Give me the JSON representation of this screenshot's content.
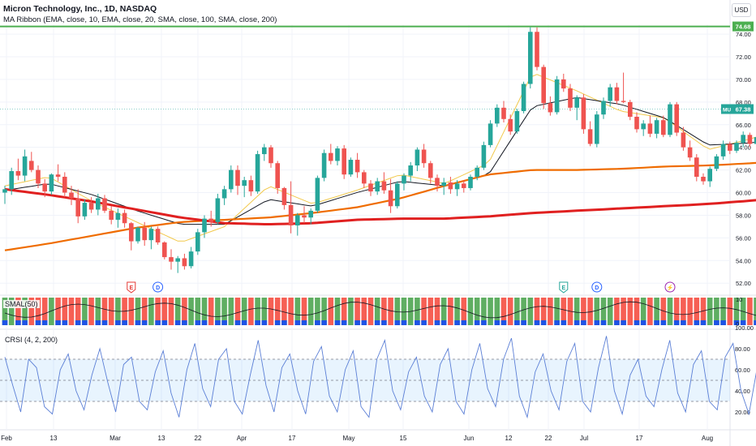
{
  "header": {
    "title": "Micron Technology, Inc., 1D, NASDAQ",
    "indicator": "MA Ribbon (EMA, close, 10, EMA, close, 20, SMA, close, 100, SMA, close, 200)",
    "currency_button": "USD"
  },
  "chart_data": {
    "type": "candlestick",
    "price_axis": {
      "ticks": [
        "74.00",
        "72.00",
        "70.00",
        "68.00",
        "66.00",
        "64.00",
        "62.00",
        "60.00",
        "58.00",
        "56.00",
        "54.00",
        "52.00"
      ],
      "ylim": [
        51,
        75.5
      ]
    },
    "x_axis": {
      "ticks": [
        "Feb",
        "13",
        "Mar",
        "13",
        "22",
        "Apr",
        "17",
        "May",
        "15",
        "Jun",
        "12",
        "22",
        "Jul",
        "17",
        "Aug"
      ]
    },
    "horizontal_level": {
      "value": 74.68,
      "label": "74.68",
      "color": "#4caf50"
    },
    "last_price": {
      "symbol": "MU",
      "value": 67.38,
      "label": "67.38",
      "color": "#26a69a"
    },
    "event_markers": [
      {
        "type": "earnings",
        "text": "E",
        "color": "#e53935",
        "day": 19
      },
      {
        "type": "dividend",
        "text": "D",
        "color": "#2962ff",
        "day": 23
      },
      {
        "type": "earnings",
        "text": "E",
        "color": "#26a69a",
        "day": 84
      },
      {
        "type": "dividend",
        "text": "D",
        "color": "#2962ff",
        "day": 89
      },
      {
        "type": "split",
        "text": "⚡",
        "color": "#9c27b0",
        "day": 100
      }
    ],
    "candles": [
      [
        60.0,
        60.6,
        59.0,
        60.3
      ],
      [
        60.3,
        62.2,
        59.8,
        61.9
      ],
      [
        61.9,
        63.0,
        61.1,
        61.5
      ],
      [
        61.5,
        63.8,
        61.0,
        63.2
      ],
      [
        62.8,
        63.6,
        61.8,
        62.0
      ],
      [
        62.0,
        62.4,
        60.4,
        60.8
      ],
      [
        60.8,
        61.2,
        59.6,
        60.1
      ],
      [
        60.1,
        61.7,
        59.8,
        61.6
      ],
      [
        61.6,
        62.5,
        61.0,
        61.4
      ],
      [
        61.4,
        61.8,
        59.6,
        60.0
      ],
      [
        60.0,
        60.6,
        58.9,
        59.5
      ],
      [
        59.5,
        60.3,
        57.3,
        57.9
      ],
      [
        57.9,
        59.4,
        57.6,
        59.1
      ],
      [
        59.1,
        59.6,
        58.2,
        58.5
      ],
      [
        58.5,
        59.9,
        58.0,
        59.5
      ],
      [
        59.5,
        59.8,
        58.2,
        58.4
      ],
      [
        58.4,
        58.8,
        57.2,
        57.6
      ],
      [
        57.6,
        58.6,
        56.9,
        58.2
      ],
      [
        58.2,
        58.5,
        56.9,
        57.3
      ],
      [
        57.3,
        57.4,
        54.9,
        55.7
      ],
      [
        55.7,
        57.0,
        55.5,
        56.9
      ],
      [
        56.9,
        57.4,
        55.3,
        55.8
      ],
      [
        55.8,
        57.0,
        55.0,
        56.8
      ],
      [
        56.8,
        57.0,
        55.4,
        55.6
      ],
      [
        55.6,
        55.7,
        54.1,
        54.3
      ],
      [
        54.3,
        55.0,
        53.2,
        53.9
      ],
      [
        53.9,
        54.4,
        52.9,
        54.2
      ],
      [
        54.2,
        54.6,
        53.2,
        53.5
      ],
      [
        53.5,
        55.2,
        53.3,
        54.8
      ],
      [
        54.8,
        56.8,
        54.5,
        56.5
      ],
      [
        56.5,
        58.0,
        56.0,
        57.7
      ],
      [
        57.7,
        58.4,
        57.0,
        57.4
      ],
      [
        57.4,
        59.9,
        57.2,
        59.5
      ],
      [
        59.5,
        60.6,
        58.9,
        60.3
      ],
      [
        60.3,
        62.4,
        60.0,
        62.0
      ],
      [
        62.0,
        62.4,
        59.8,
        60.6
      ],
      [
        60.6,
        61.4,
        59.6,
        61.1
      ],
      [
        61.1,
        61.5,
        59.7,
        60.1
      ],
      [
        60.1,
        63.7,
        59.9,
        63.4
      ],
      [
        63.4,
        64.3,
        62.8,
        64.0
      ],
      [
        64.0,
        64.2,
        62.2,
        62.6
      ],
      [
        62.6,
        62.8,
        59.9,
        60.4
      ],
      [
        60.4,
        60.5,
        58.5,
        58.9
      ],
      [
        58.9,
        61.0,
        56.4,
        57.1
      ],
      [
        57.1,
        58.2,
        56.2,
        58.0
      ],
      [
        58.0,
        58.8,
        57.3,
        57.8
      ],
      [
        57.8,
        58.6,
        57.2,
        58.4
      ],
      [
        58.4,
        61.5,
        58.2,
        61.3
      ],
      [
        61.3,
        63.8,
        61.0,
        63.5
      ],
      [
        63.5,
        64.3,
        62.5,
        62.8
      ],
      [
        62.8,
        64.1,
        62.4,
        63.9
      ],
      [
        63.9,
        64.2,
        61.2,
        61.6
      ],
      [
        61.6,
        63.1,
        61.4,
        62.9
      ],
      [
        62.9,
        63.5,
        61.3,
        61.8
      ],
      [
        61.8,
        62.0,
        60.4,
        60.8
      ],
      [
        60.8,
        61.1,
        59.7,
        60.1
      ],
      [
        60.1,
        61.3,
        59.8,
        61.0
      ],
      [
        61.0,
        61.8,
        59.9,
        60.2
      ],
      [
        60.2,
        61.2,
        58.2,
        58.8
      ],
      [
        58.8,
        61.0,
        58.6,
        60.8
      ],
      [
        60.8,
        61.7,
        60.2,
        61.5
      ],
      [
        61.5,
        62.7,
        61.0,
        62.4
      ],
      [
        62.4,
        64.0,
        61.9,
        63.8
      ],
      [
        63.8,
        64.3,
        62.2,
        62.6
      ],
      [
        62.6,
        62.8,
        60.8,
        61.3
      ],
      [
        61.3,
        61.6,
        60.1,
        60.6
      ],
      [
        60.6,
        61.3,
        59.8,
        60.9
      ],
      [
        60.9,
        61.4,
        59.9,
        60.3
      ],
      [
        60.3,
        61.1,
        59.7,
        60.8
      ],
      [
        60.8,
        61.1,
        60.0,
        60.4
      ],
      [
        60.4,
        61.6,
        60.2,
        61.4
      ],
      [
        61.4,
        62.4,
        61.1,
        62.2
      ],
      [
        62.2,
        64.5,
        62.0,
        64.2
      ],
      [
        64.2,
        66.4,
        64.0,
        66.1
      ],
      [
        66.1,
        67.8,
        65.8,
        67.5
      ],
      [
        67.5,
        68.1,
        66.2,
        66.5
      ],
      [
        66.5,
        66.9,
        65.1,
        65.4
      ],
      [
        65.4,
        67.4,
        65.2,
        67.2
      ],
      [
        67.2,
        69.8,
        67.0,
        69.6
      ],
      [
        69.6,
        74.6,
        69.2,
        74.2
      ],
      [
        74.2,
        74.6,
        70.8,
        71.1
      ],
      [
        71.1,
        71.3,
        67.4,
        67.9
      ],
      [
        67.9,
        68.5,
        66.8,
        67.1
      ],
      [
        67.1,
        70.3,
        66.9,
        70.0
      ],
      [
        70.0,
        70.5,
        68.9,
        69.2
      ],
      [
        69.2,
        69.6,
        67.2,
        67.5
      ],
      [
        67.5,
        68.6,
        66.4,
        68.4
      ],
      [
        68.4,
        68.7,
        65.2,
        65.6
      ],
      [
        65.6,
        66.3,
        64.1,
        64.3
      ],
      [
        64.3,
        67.2,
        64.0,
        66.9
      ],
      [
        66.9,
        68.4,
        66.5,
        68.1
      ],
      [
        68.1,
        69.6,
        67.6,
        69.3
      ],
      [
        69.3,
        69.7,
        67.8,
        68.1
      ],
      [
        68.1,
        70.6,
        67.9,
        68.0
      ],
      [
        68.0,
        68.2,
        66.4,
        66.7
      ],
      [
        66.7,
        67.1,
        65.3,
        65.6
      ],
      [
        65.6,
        66.4,
        65.0,
        66.1
      ],
      [
        66.1,
        66.8,
        64.9,
        65.2
      ],
      [
        65.2,
        66.6,
        64.8,
        66.4
      ],
      [
        66.4,
        66.8,
        64.9,
        65.1
      ],
      [
        65.1,
        68.0,
        64.9,
        67.8
      ],
      [
        67.8,
        68.0,
        65.0,
        65.3
      ],
      [
        65.3,
        65.8,
        63.7,
        64.0
      ],
      [
        64.0,
        64.6,
        62.8,
        63.1
      ],
      [
        63.1,
        63.4,
        61.0,
        61.4
      ],
      [
        61.4,
        61.7,
        60.7,
        61.0
      ],
      [
        61.0,
        62.3,
        60.5,
        62.1
      ],
      [
        62.1,
        63.4,
        61.9,
        63.2
      ],
      [
        63.2,
        64.6,
        62.9,
        64.3
      ],
      [
        64.3,
        64.5,
        63.4,
        63.7
      ],
      [
        63.7,
        64.6,
        63.5,
        64.4
      ],
      [
        64.4,
        65.4,
        64.0,
        65.1
      ],
      [
        65.1,
        65.3,
        64.0,
        64.3
      ],
      [
        64.3,
        65.2,
        64.1,
        64.9
      ],
      [
        64.9,
        65.7,
        64.6,
        65.5
      ],
      [
        65.5,
        65.9,
        64.9,
        65.2
      ],
      [
        65.2,
        66.4,
        64.9,
        65.9
      ],
      [
        65.9,
        66.1,
        65.4,
        65.6
      ],
      [
        65.6,
        66.2,
        65.3,
        66.0
      ],
      [
        65.0,
        67.9,
        64.9,
        67.4
      ]
    ],
    "moving_averages": [
      {
        "name": "EMA 10",
        "color": "#f2c94c",
        "key_values": [
          60.6,
          61.4,
          59.2,
          57.4,
          55.6,
          57.0,
          60.6,
          59.0,
          60.2,
          61.6,
          60.8,
          62.6,
          70.6,
          69.0,
          67.2,
          66.6,
          63.8,
          64.8,
          66.0
        ]
      },
      {
        "name": "EMA 20",
        "color": "#131722",
        "key_values": [
          60.2,
          60.8,
          59.8,
          58.4,
          57.2,
          57.2,
          59.4,
          58.8,
          60.0,
          61.0,
          60.6,
          61.6,
          67.6,
          68.4,
          67.8,
          66.6,
          64.2,
          64.4,
          65.0
        ]
      },
      {
        "name": "SMA 100",
        "color": "#ef6c00",
        "key_values": [
          54.9,
          55.5,
          56.2,
          56.9,
          57.4,
          57.6,
          57.8,
          58.2,
          58.7,
          59.5,
          60.6,
          61.6,
          62.0,
          62.0,
          62.1,
          62.3,
          62.4,
          62.6,
          62.9
        ]
      },
      {
        "name": "SMA 200",
        "color": "#e02020",
        "key_values": [
          60.3,
          59.8,
          59.2,
          58.5,
          57.8,
          57.3,
          57.2,
          57.3,
          57.6,
          57.7,
          57.7,
          57.9,
          58.2,
          58.4,
          58.6,
          58.8,
          59.0,
          59.3,
          59.7
        ]
      }
    ],
    "indicator_panes": [
      {
        "label": "SMAL(50)",
        "axis_ticks": [
          "10",
          "0"
        ]
      },
      {
        "label": "CRSI (4, 2, 200)",
        "axis_ticks": [
          "100.00",
          "80.00",
          "60.00",
          "40.00",
          "20.00"
        ],
        "band": [
          30,
          70
        ],
        "midline": 50,
        "values": [
          72,
          45,
          20,
          70,
          62,
          25,
          18,
          60,
          75,
          40,
          22,
          55,
          80,
          48,
          20,
          65,
          72,
          30,
          22,
          58,
          78,
          38,
          15,
          60,
          85,
          42,
          25,
          70,
          80,
          30,
          18,
          55,
          88,
          45,
          20,
          62,
          75,
          40,
          18,
          68,
          82,
          35,
          20,
          60,
          78,
          25,
          15,
          70,
          88,
          40,
          22,
          58,
          72,
          35,
          20,
          65,
          80,
          30,
          18,
          60,
          85,
          42,
          25,
          70,
          90,
          35,
          15,
          58,
          75,
          40,
          22,
          68,
          85,
          30,
          20,
          62,
          92,
          40,
          18,
          55,
          70,
          35,
          25,
          60,
          88,
          38,
          20,
          65,
          78,
          30,
          22,
          72,
          85,
          40,
          18,
          60,
          75,
          35,
          20,
          68,
          82
        ]
      }
    ]
  }
}
